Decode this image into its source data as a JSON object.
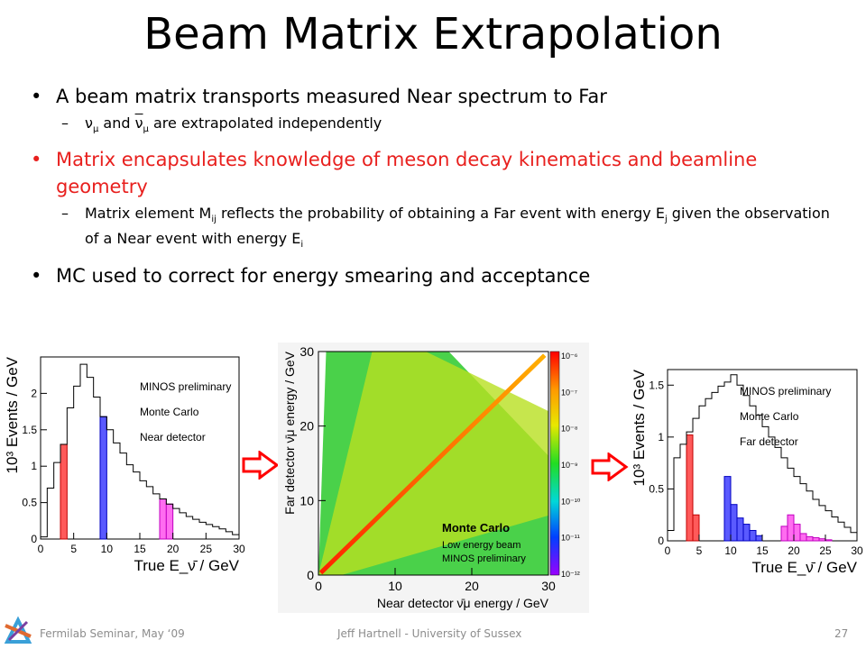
{
  "slide": {
    "title": "Beam Matrix Extrapolation",
    "bullets": [
      {
        "text": "A beam matrix transports measured Near spectrum to Far"
      },
      {
        "sub_pre": "ν",
        "sub_mu": "μ",
        "sub_and": " and ",
        "sub_nubar": "ν",
        "sub_mu2": "μ",
        "sub_post": " are extrapolated independently"
      },
      {
        "text": "Matrix encapsulates knowledge of meson decay kinematics and beamline geometry"
      },
      {
        "p1": "Matrix element M",
        "s1": "ij",
        "p2": " reflects the probability of obtaining a Far event with energy E",
        "s2": "j",
        "p3": " given the observation of a Near event with energy E",
        "s3": "i"
      },
      {
        "text": "MC used to correct for energy smearing and acceptance"
      }
    ]
  },
  "footer": {
    "left": "Fermilab Seminar, May ‘09",
    "center": "Jeff Hartnell - University of Sussex",
    "page": "27"
  },
  "colors": {
    "red": "#e8201e",
    "arrow": "#ff0000"
  },
  "chart_data": [
    {
      "type": "bar",
      "ylabel": "10³ Events / GeV",
      "xlabel": "True E_ν̄ / GeV",
      "xlim": [
        0,
        30
      ],
      "ylim": [
        0,
        2.5
      ],
      "xticks": [
        "0",
        "5",
        "10",
        "15",
        "20",
        "25",
        "30"
      ],
      "yticks": [
        "0",
        "0.5",
        "1",
        "1.5",
        "2"
      ],
      "legend": [
        "MINOS preliminary",
        "Monte Carlo",
        "Near detector"
      ],
      "bin_edges": [
        0,
        1,
        2,
        3,
        4,
        5,
        6,
        7,
        8,
        9,
        10,
        11,
        12,
        13,
        14,
        15,
        16,
        17,
        18,
        19,
        20,
        21,
        22,
        23,
        24,
        25,
        26,
        27,
        28,
        29,
        30
      ],
      "values": [
        0.03,
        0.7,
        1.05,
        1.3,
        1.8,
        2.1,
        2.4,
        2.22,
        1.95,
        1.68,
        1.5,
        1.32,
        1.18,
        1.02,
        0.92,
        0.8,
        0.72,
        0.62,
        0.55,
        0.48,
        0.42,
        0.36,
        0.31,
        0.27,
        0.23,
        0.2,
        0.17,
        0.14,
        0.1,
        0.06
      ],
      "highlights": [
        {
          "from": 3,
          "to": 4,
          "value": 1.3,
          "color": "#ff5a5a"
        },
        {
          "from": 9,
          "to": 10,
          "value": 1.68,
          "color": "#5a5aff"
        },
        {
          "from": 18,
          "to": 20,
          "values": [
            0.55,
            0.48
          ],
          "color": "#ff6cf0"
        }
      ]
    },
    {
      "type": "heatmap",
      "xlabel": "Near detector ν̄μ energy / GeV",
      "ylabel": "Far detector ν̄μ energy / GeV",
      "xlim": [
        0,
        30
      ],
      "ylim": [
        0,
        30
      ],
      "xticks": [
        "0",
        "10",
        "20",
        "30"
      ],
      "yticks": [
        "0",
        "10",
        "20",
        "30"
      ],
      "color_scale": "log",
      "zlim": [
        "10⁻¹²",
        "10⁻⁶"
      ],
      "zticks": [
        "10⁻⁶",
        "10⁻⁷",
        "10⁻⁸",
        "10⁻⁹",
        "10⁻¹⁰",
        "10⁻¹¹",
        "10⁻¹²"
      ],
      "annotations": [
        "Monte Carlo",
        "Low energy beam",
        "MINOS preliminary"
      ]
    },
    {
      "type": "bar",
      "ylabel": "10³ Events / GeV",
      "xlabel": "True E_ν̄ / GeV",
      "xlim": [
        0,
        30
      ],
      "ylim": [
        0,
        1.65
      ],
      "xticks": [
        "0",
        "5",
        "10",
        "15",
        "20",
        "25",
        "30"
      ],
      "yticks": [
        "0",
        "0.5",
        "1",
        "1.5"
      ],
      "legend": [
        "MINOS preliminary",
        "Monte Carlo",
        "Far detector"
      ],
      "bin_edges": [
        0,
        1,
        2,
        3,
        4,
        5,
        6,
        7,
        8,
        9,
        10,
        11,
        12,
        13,
        14,
        15,
        16,
        17,
        18,
        19,
        20,
        21,
        22,
        23,
        24,
        25,
        26,
        27,
        28,
        29,
        30
      ],
      "values": [
        0.1,
        0.8,
        0.93,
        1.05,
        1.18,
        1.3,
        1.37,
        1.43,
        1.49,
        1.53,
        1.6,
        1.5,
        1.4,
        1.3,
        1.21,
        1.1,
        1.0,
        0.9,
        0.8,
        0.7,
        0.62,
        0.55,
        0.48,
        0.4,
        0.34,
        0.29,
        0.23,
        0.18,
        0.13,
        0.08
      ],
      "highlights": [
        {
          "from": 3,
          "to": 5,
          "values": [
            1.02,
            0.25
          ],
          "color": "#ff5a5a"
        },
        {
          "from": 9,
          "to": 15,
          "values": [
            0.62,
            0.35,
            0.22,
            0.16,
            0.1,
            0.05
          ],
          "color": "#5a5aff"
        },
        {
          "from": 18,
          "to": 26,
          "values": [
            0.14,
            0.25,
            0.16,
            0.07,
            0.04,
            0.03,
            0.02,
            0.01
          ],
          "color": "#ff6cf0"
        }
      ]
    }
  ]
}
